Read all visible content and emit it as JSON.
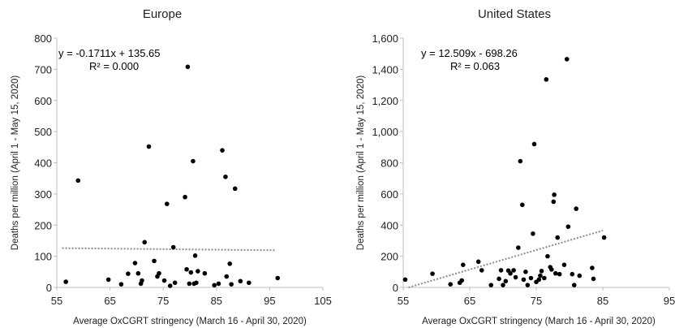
{
  "chart_data": [
    {
      "type": "scatter",
      "title": "Europe",
      "xlabel": "Average OxCGRT stringency (March 16 - April 30, 2020)",
      "ylabel": "Deaths per million (April 1 - May 15, 2020)",
      "xlim": [
        55,
        105
      ],
      "ylim": [
        0,
        800
      ],
      "xticks": [
        "55",
        "65",
        "75",
        "85",
        "95",
        "105"
      ],
      "yticks": [
        "0",
        "100",
        "200",
        "300",
        "400",
        "500",
        "600",
        "700",
        "800"
      ],
      "grid": false,
      "trend_equation": "y = -0.1711x + 135.65",
      "trend_r2": "R² = 0.000",
      "trendline": {
        "slope": -0.1711,
        "intercept": 135.65,
        "x_range": [
          56,
          96
        ]
      },
      "points": [
        [
          56.7,
          18
        ],
        [
          59,
          343
        ],
        [
          64.7,
          25
        ],
        [
          67.1,
          10
        ],
        [
          68.4,
          44
        ],
        [
          69.7,
          78
        ],
        [
          70.3,
          45
        ],
        [
          70.8,
          12
        ],
        [
          71,
          22
        ],
        [
          71.5,
          145
        ],
        [
          72.3,
          452
        ],
        [
          73.3,
          85
        ],
        [
          73.9,
          35
        ],
        [
          74.2,
          45
        ],
        [
          75.2,
          22
        ],
        [
          75.7,
          268
        ],
        [
          76.3,
          5
        ],
        [
          76.9,
          129
        ],
        [
          77.2,
          15
        ],
        [
          79.1,
          290
        ],
        [
          79.6,
          708
        ],
        [
          79.4,
          58
        ],
        [
          79.9,
          12
        ],
        [
          80.2,
          48
        ],
        [
          80.6,
          405
        ],
        [
          80.8,
          12
        ],
        [
          81,
          102
        ],
        [
          81.2,
          15
        ],
        [
          81.5,
          52
        ],
        [
          82.8,
          45
        ],
        [
          84.6,
          7
        ],
        [
          85.4,
          12
        ],
        [
          86.1,
          440
        ],
        [
          86.7,
          355
        ],
        [
          86.9,
          35
        ],
        [
          87.5,
          76
        ],
        [
          87.8,
          10
        ],
        [
          88.5,
          317
        ],
        [
          89.5,
          20
        ],
        [
          91.1,
          15
        ],
        [
          96.5,
          30
        ]
      ]
    },
    {
      "type": "scatter",
      "title": "United States",
      "xlabel": "Average OxCGRT stringency (March 16 - April 30, 2020)",
      "ylabel": "Deaths per million (April 1 - May 15, 2020)",
      "xlim": [
        55,
        95
      ],
      "ylim": [
        0,
        1600
      ],
      "xticks": [
        "55",
        "65",
        "75",
        "85",
        "95"
      ],
      "yticks": [
        "0",
        "200",
        "400",
        "600",
        "800",
        "1,000",
        "1,200",
        "1,400",
        "1,600"
      ],
      "grid": false,
      "trend_equation": "y = 12.509x - 698.26",
      "trend_r2": "R² = 0.063",
      "trendline": {
        "slope": 12.509,
        "intercept": -698.26,
        "x_range": [
          55.8,
          85
        ]
      },
      "points": [
        [
          55.3,
          50
        ],
        [
          59.4,
          88
        ],
        [
          62.1,
          20
        ],
        [
          63.5,
          30
        ],
        [
          63.8,
          45
        ],
        [
          64,
          145
        ],
        [
          66.3,
          165
        ],
        [
          66.8,
          110
        ],
        [
          68.2,
          15
        ],
        [
          69.4,
          55
        ],
        [
          69.7,
          110
        ],
        [
          70,
          15
        ],
        [
          70.4,
          40
        ],
        [
          70.8,
          108
        ],
        [
          71.1,
          90
        ],
        [
          71.6,
          110
        ],
        [
          71.9,
          65
        ],
        [
          72.3,
          255
        ],
        [
          72.6,
          810
        ],
        [
          72.9,
          530
        ],
        [
          73.1,
          50
        ],
        [
          73.4,
          100
        ],
        [
          73.7,
          15
        ],
        [
          74.2,
          60
        ],
        [
          74.5,
          345
        ],
        [
          74.7,
          920
        ],
        [
          75,
          35
        ],
        [
          75.4,
          50
        ],
        [
          75.6,
          75
        ],
        [
          75.8,
          105
        ],
        [
          76.2,
          60
        ],
        [
          76.5,
          1335
        ],
        [
          76.7,
          200
        ],
        [
          77.1,
          130
        ],
        [
          77.3,
          115
        ],
        [
          77.6,
          550
        ],
        [
          77.7,
          595
        ],
        [
          77.9,
          90
        ],
        [
          78.2,
          320
        ],
        [
          78.5,
          85
        ],
        [
          79.2,
          145
        ],
        [
          79.6,
          1465
        ],
        [
          79.8,
          390
        ],
        [
          80.4,
          85
        ],
        [
          80.7,
          15
        ],
        [
          81,
          505
        ],
        [
          81.5,
          75
        ],
        [
          83.4,
          125
        ],
        [
          83.6,
          55
        ],
        [
          85.2,
          320
        ]
      ]
    }
  ]
}
